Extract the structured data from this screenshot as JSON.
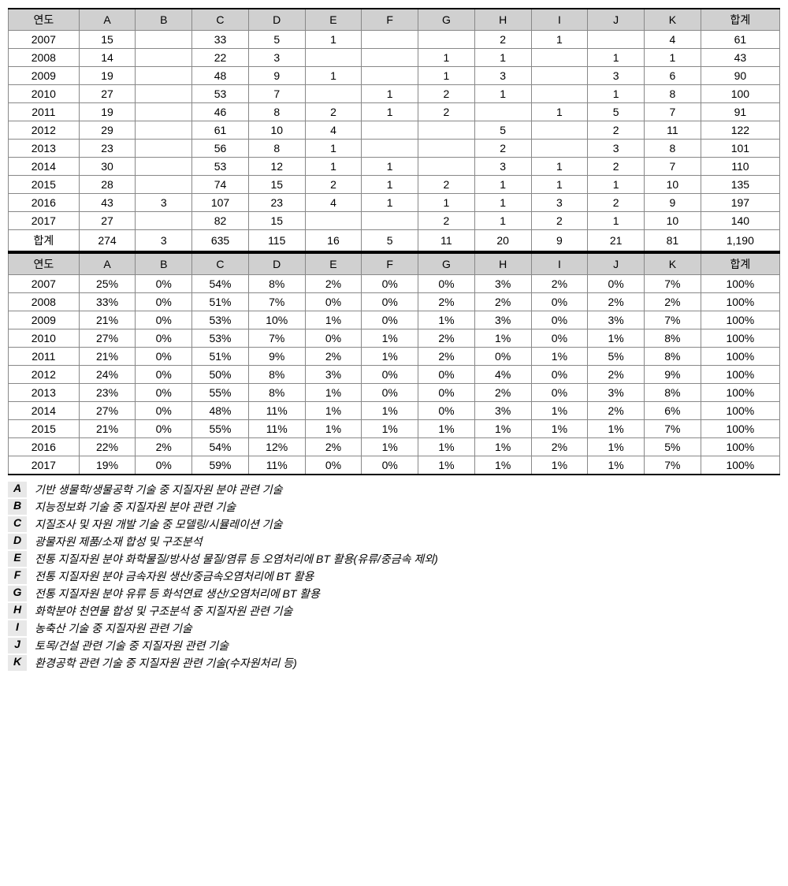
{
  "table1": {
    "type": "table",
    "header_bg": "#d0d0d0",
    "border_color": "#888888",
    "columns": [
      "연도",
      "A",
      "B",
      "C",
      "D",
      "E",
      "F",
      "G",
      "H",
      "I",
      "J",
      "K",
      "합계"
    ],
    "rows": [
      [
        "2007",
        "15",
        "",
        "33",
        "5",
        "1",
        "",
        "",
        "2",
        "1",
        "",
        "4",
        "61"
      ],
      [
        "2008",
        "14",
        "",
        "22",
        "3",
        "",
        "",
        "1",
        "1",
        "",
        "1",
        "1",
        "43"
      ],
      [
        "2009",
        "19",
        "",
        "48",
        "9",
        "1",
        "",
        "1",
        "3",
        "",
        "3",
        "6",
        "90"
      ],
      [
        "2010",
        "27",
        "",
        "53",
        "7",
        "",
        "1",
        "2",
        "1",
        "",
        "1",
        "8",
        "100"
      ],
      [
        "2011",
        "19",
        "",
        "46",
        "8",
        "2",
        "1",
        "2",
        "",
        "1",
        "5",
        "7",
        "91"
      ],
      [
        "2012",
        "29",
        "",
        "61",
        "10",
        "4",
        "",
        "",
        "5",
        "",
        "2",
        "11",
        "122"
      ],
      [
        "2013",
        "23",
        "",
        "56",
        "8",
        "1",
        "",
        "",
        "2",
        "",
        "3",
        "8",
        "101"
      ],
      [
        "2014",
        "30",
        "",
        "53",
        "12",
        "1",
        "1",
        "",
        "3",
        "1",
        "2",
        "7",
        "110"
      ],
      [
        "2015",
        "28",
        "",
        "74",
        "15",
        "2",
        "1",
        "2",
        "1",
        "1",
        "1",
        "10",
        "135"
      ],
      [
        "2016",
        "43",
        "3",
        "107",
        "23",
        "4",
        "1",
        "1",
        "1",
        "3",
        "2",
        "9",
        "197"
      ],
      [
        "2017",
        "27",
        "",
        "82",
        "15",
        "",
        "",
        "2",
        "1",
        "2",
        "1",
        "10",
        "140"
      ],
      [
        "합계",
        "274",
        "3",
        "635",
        "115",
        "16",
        "5",
        "11",
        "20",
        "9",
        "21",
        "81",
        "1,190"
      ]
    ]
  },
  "table2": {
    "type": "table",
    "header_bg": "#d0d0d0",
    "border_color": "#888888",
    "columns": [
      "연도",
      "A",
      "B",
      "C",
      "D",
      "E",
      "F",
      "G",
      "H",
      "I",
      "J",
      "K",
      "합계"
    ],
    "rows": [
      [
        "2007",
        "25%",
        "0%",
        "54%",
        "8%",
        "2%",
        "0%",
        "0%",
        "3%",
        "2%",
        "0%",
        "7%",
        "100%"
      ],
      [
        "2008",
        "33%",
        "0%",
        "51%",
        "7%",
        "0%",
        "0%",
        "2%",
        "2%",
        "0%",
        "2%",
        "2%",
        "100%"
      ],
      [
        "2009",
        "21%",
        "0%",
        "53%",
        "10%",
        "1%",
        "0%",
        "1%",
        "3%",
        "0%",
        "3%",
        "7%",
        "100%"
      ],
      [
        "2010",
        "27%",
        "0%",
        "53%",
        "7%",
        "0%",
        "1%",
        "2%",
        "1%",
        "0%",
        "1%",
        "8%",
        "100%"
      ],
      [
        "2011",
        "21%",
        "0%",
        "51%",
        "9%",
        "2%",
        "1%",
        "2%",
        "0%",
        "1%",
        "5%",
        "8%",
        "100%"
      ],
      [
        "2012",
        "24%",
        "0%",
        "50%",
        "8%",
        "3%",
        "0%",
        "0%",
        "4%",
        "0%",
        "2%",
        "9%",
        "100%"
      ],
      [
        "2013",
        "23%",
        "0%",
        "55%",
        "8%",
        "1%",
        "0%",
        "0%",
        "2%",
        "0%",
        "3%",
        "8%",
        "100%"
      ],
      [
        "2014",
        "27%",
        "0%",
        "48%",
        "11%",
        "1%",
        "1%",
        "0%",
        "3%",
        "1%",
        "2%",
        "6%",
        "100%"
      ],
      [
        "2015",
        "21%",
        "0%",
        "55%",
        "11%",
        "1%",
        "1%",
        "1%",
        "1%",
        "1%",
        "1%",
        "7%",
        "100%"
      ],
      [
        "2016",
        "22%",
        "2%",
        "54%",
        "12%",
        "2%",
        "1%",
        "1%",
        "1%",
        "2%",
        "1%",
        "5%",
        "100%"
      ],
      [
        "2017",
        "19%",
        "0%",
        "59%",
        "11%",
        "0%",
        "0%",
        "1%",
        "1%",
        "1%",
        "1%",
        "7%",
        "100%"
      ]
    ]
  },
  "legend": {
    "items": [
      {
        "key": "A",
        "text": "기반 생물학/생물공학 기술 중 지질자원 분야 관련 기술"
      },
      {
        "key": "B",
        "text": "지능정보화 기술 중 지질자원 분야 관련 기술"
      },
      {
        "key": "C",
        "text": "지질조사 및 자원 개발 기술 중 모델링/시뮬레이션 기술"
      },
      {
        "key": "D",
        "text": "광물자원 제품/소재 합성 및 구조분석"
      },
      {
        "key": "E",
        "text": "전통 지질자원 분야 화학물질/방사성 물질/염류 등 오염처리에 BT 활용(유류/중금속 제외)"
      },
      {
        "key": "F",
        "text": "전통 지질자원 분야 금속자원 생산/중금속오염처리에 BT 활용"
      },
      {
        "key": "G",
        "text": "전통 지질자원 분야 유류 등 화석연료 생산/오염처리에 BT 활용"
      },
      {
        "key": "H",
        "text": "화학분야 천연물 합성 및 구조분석 중 지질자원 관련 기술"
      },
      {
        "key": "I",
        "text": "농축산 기술 중 지질자원 관련 기술"
      },
      {
        "key": "J",
        "text": "토목/건설 관련 기술 중 지질자원 관련 기술"
      },
      {
        "key": "K",
        "text": "환경공학 관련 기술 중 지질자원 관련 기술(수자원처리 등)"
      }
    ]
  }
}
